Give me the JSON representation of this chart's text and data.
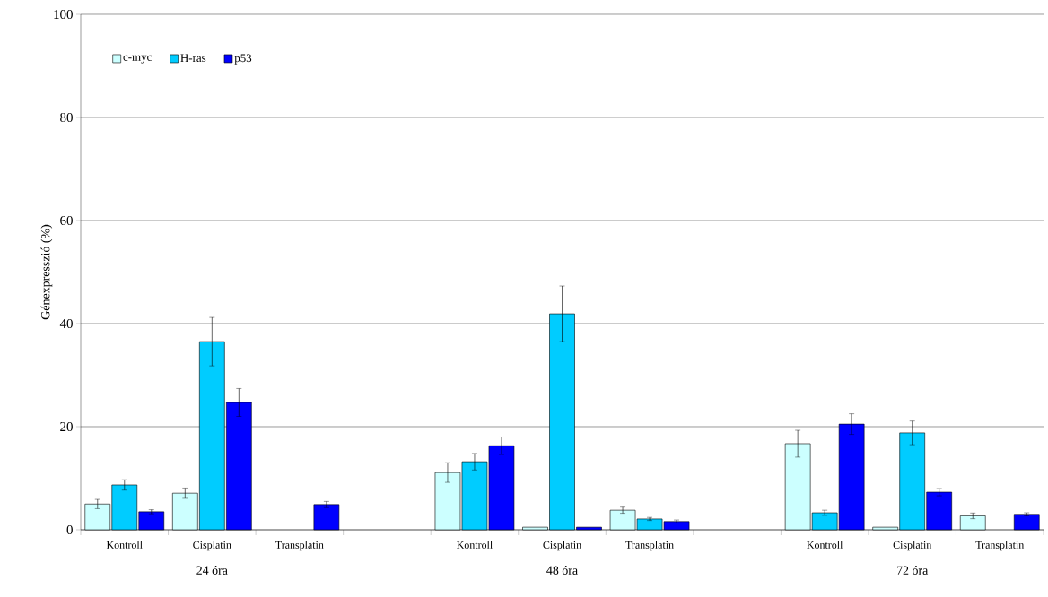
{
  "chart_data": {
    "type": "bar",
    "ylabel": "Génexpresszió (%)",
    "categories": [
      "Kontroll",
      "Cisplatin",
      "Transplatin",
      null,
      "Kontroll",
      "Cisplatin",
      "Transplatin",
      null,
      "Kontroll",
      "Cisplatin",
      "Transplatin"
    ],
    "series": [
      {
        "name": "c-myc",
        "color": "#ccffff",
        "values": [
          5.0,
          7.1,
          null,
          null,
          11.1,
          0.5,
          3.8,
          null,
          16.7,
          0.5,
          2.7
        ],
        "errors": [
          0.9,
          1.0,
          null,
          null,
          1.9,
          null,
          0.6,
          null,
          2.6,
          null,
          0.55
        ]
      },
      {
        "name": "H-ras",
        "color": "#00ccff",
        "values": [
          8.7,
          36.5,
          null,
          null,
          13.2,
          41.9,
          2.1,
          null,
          3.3,
          18.8,
          null
        ],
        "errors": [
          1.0,
          4.7,
          null,
          null,
          1.6,
          5.4,
          0.3,
          null,
          0.5,
          2.3,
          null
        ]
      },
      {
        "name": "p53",
        "color": "#0000ff",
        "values": [
          3.5,
          24.7,
          4.9,
          null,
          16.3,
          0.5,
          1.6,
          null,
          20.5,
          7.3,
          3.0
        ],
        "errors": [
          0.4,
          2.7,
          0.6,
          null,
          1.7,
          null,
          0.3,
          null,
          2.0,
          0.7,
          0.3
        ]
      }
    ],
    "annotations": [
      "24 óra",
      "48 óra",
      "72 óra"
    ],
    "ylim": [
      0,
      100
    ],
    "yticks": [
      0,
      20,
      40,
      60,
      80,
      100
    ],
    "grid": "y",
    "legend": "top left"
  }
}
